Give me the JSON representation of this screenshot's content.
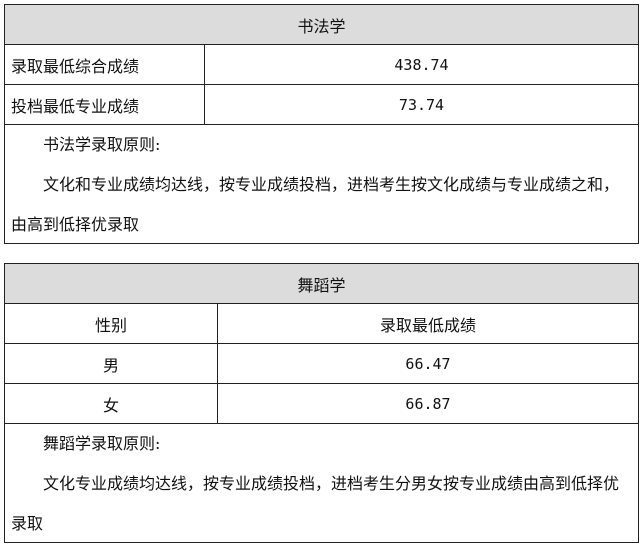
{
  "calligraphy": {
    "title": "书法学",
    "rows": [
      {
        "label": "录取最低综合成绩",
        "value": "438.74"
      },
      {
        "label": "投档最低专业成绩",
        "value": "73.74"
      }
    ],
    "rule_title": "书法学录取原则:",
    "rule_text": "文化和专业成绩均达线，按专业成绩投档，进档考生按文化成绩与专业成绩之和，由高到低择优录取"
  },
  "dance": {
    "title": "舞蹈学",
    "columns": [
      "性别",
      "录取最低成绩"
    ],
    "rows": [
      {
        "gender": "男",
        "value": "66.47"
      },
      {
        "gender": "女",
        "value": "66.87"
      }
    ],
    "rule_title": "舞蹈学录取原则:",
    "rule_text": "文化专业成绩均达线，按专业成绩投档，进档考生分男女按专业成绩由高到低择优录取"
  }
}
